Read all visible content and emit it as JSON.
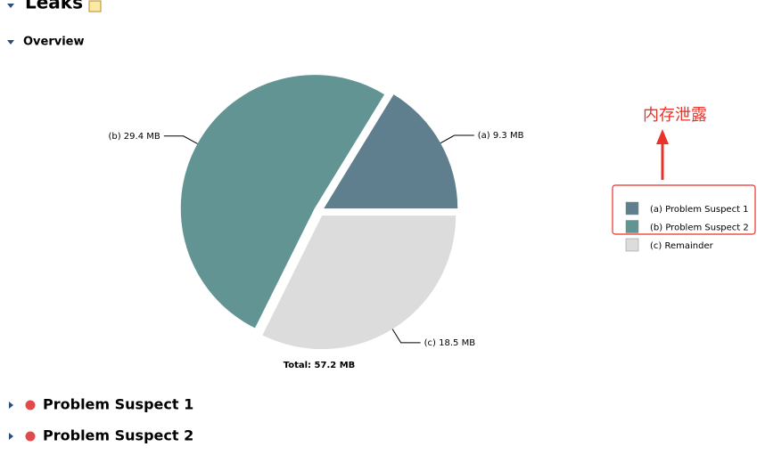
{
  "header": {
    "title": "Leaks"
  },
  "section": "Overview",
  "chart_data": {
    "type": "pie",
    "categories": [
      "(a)  Problem Suspect 1",
      "(b)  Problem Suspect 2",
      "(c)  Remainder"
    ],
    "values": [
      9.3,
      29.4,
      18.5
    ],
    "value_labels": [
      "(a)  9.3 MB",
      "(b)  29.4 MB",
      "(c)  18.5 MB"
    ],
    "colors": [
      "#5f7f8e",
      "#629494",
      "#dcdcdc"
    ],
    "total_label": "Total: 57.2 MB"
  },
  "annotation": "内存泄露",
  "suspects": [
    "Problem Suspect 1",
    "Problem Suspect 2"
  ]
}
